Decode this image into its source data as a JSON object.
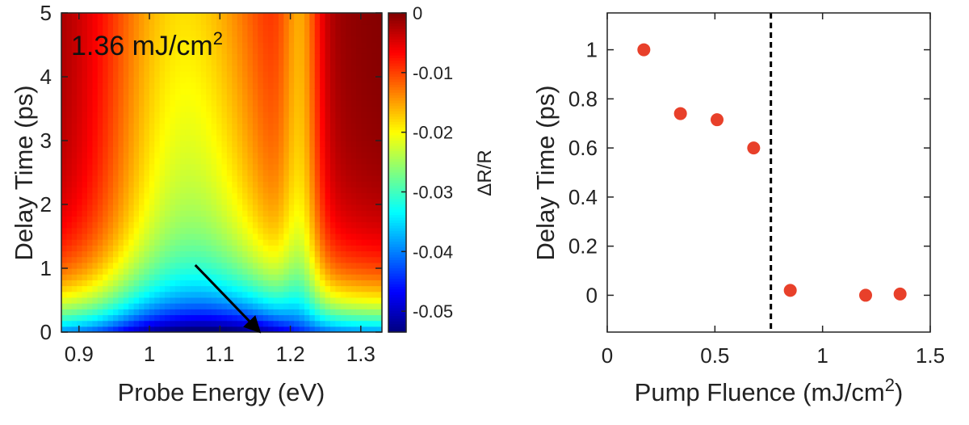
{
  "chart_data": [
    {
      "type": "heatmap",
      "xlabel": "Probe Energy (eV)",
      "ylabel": "Delay Time (ps)",
      "xlim": [
        0.875,
        1.33
      ],
      "ylim": [
        0,
        5
      ],
      "xticks": [
        "0.9",
        "1",
        "1.1",
        "1.2",
        "1.3"
      ],
      "xtick_values": [
        0.9,
        1.0,
        1.1,
        1.2,
        1.3
      ],
      "yticks": [
        "0",
        "1",
        "2",
        "3",
        "4",
        "5"
      ],
      "ytick_values": [
        0,
        1,
        2,
        3,
        4,
        5
      ],
      "annotation": {
        "text": "1.36 mJ/cm",
        "superscript": "2"
      },
      "arrow": {
        "from": [
          1.065,
          1.05
        ],
        "to": [
          1.155,
          0.02
        ]
      },
      "colorbar": {
        "label": "ΔR/R",
        "range": [
          -0.0535,
          0
        ],
        "ticks": [
          "0",
          "-0.01",
          "-0.02",
          "-0.03",
          "-0.04",
          "-0.05"
        ],
        "tick_values": [
          0,
          -0.01,
          -0.02,
          -0.03,
          -0.04,
          -0.05
        ],
        "colormap": "jet"
      }
    },
    {
      "type": "scatter",
      "xlabel": "Pump Fluence (mJ/cm",
      "xlabel_sup": "2",
      "xlabel_close": ")",
      "ylabel": "Delay Time (ps)",
      "xlim": [
        0,
        1.5
      ],
      "ylim": [
        -0.15,
        1.15
      ],
      "xticks": [
        "0",
        "0.5",
        "1",
        "1.5"
      ],
      "xtick_values": [
        0,
        0.5,
        1,
        1.5
      ],
      "yticks": [
        "0",
        "0.2",
        "0.4",
        "0.6",
        "0.8",
        "1"
      ],
      "ytick_values": [
        0,
        0.2,
        0.4,
        0.6,
        0.8,
        1
      ],
      "marker_color": "#e8402a",
      "x": [
        0.17,
        0.34,
        0.51,
        0.68,
        0.85,
        1.2,
        1.36
      ],
      "y": [
        1.0,
        0.74,
        0.715,
        0.6,
        0.02,
        0.0,
        0.005
      ],
      "vline": {
        "x": 0.76,
        "style": "dashed"
      }
    }
  ]
}
